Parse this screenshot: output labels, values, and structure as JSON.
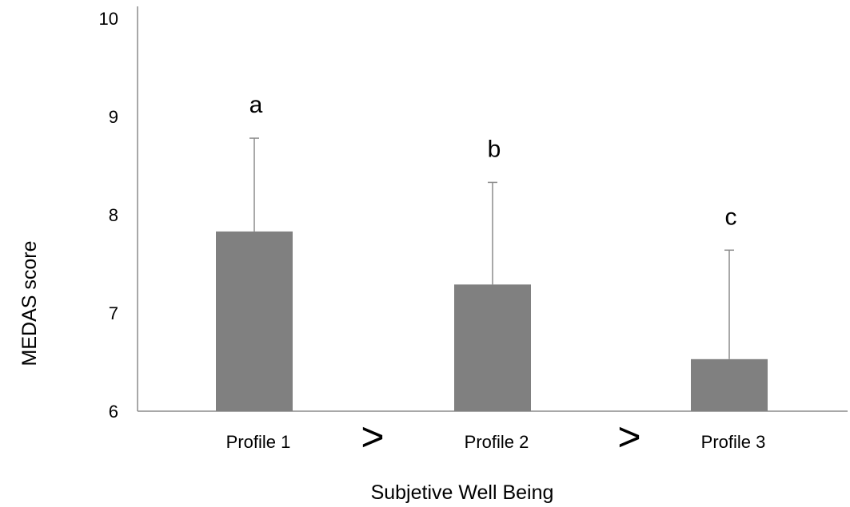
{
  "chart_data": {
    "type": "bar",
    "categories": [
      "Profile 1",
      "Profile 2",
      "Profile 3"
    ],
    "values": [
      7.83,
      7.29,
      6.53
    ],
    "error_upper": [
      8.78,
      8.33,
      7.64
    ],
    "significance_labels": [
      "a",
      "b",
      "c"
    ],
    "between_labels": [
      ">",
      ">"
    ],
    "xlabel": "Subjetive Well Being",
    "ylabel": "MEDAS score",
    "ylim": [
      6,
      10
    ],
    "yticks": [
      6,
      7,
      8,
      9,
      10
    ],
    "grid": false,
    "bar_color": "#808080",
    "axis_color": "#8c8c8c"
  }
}
